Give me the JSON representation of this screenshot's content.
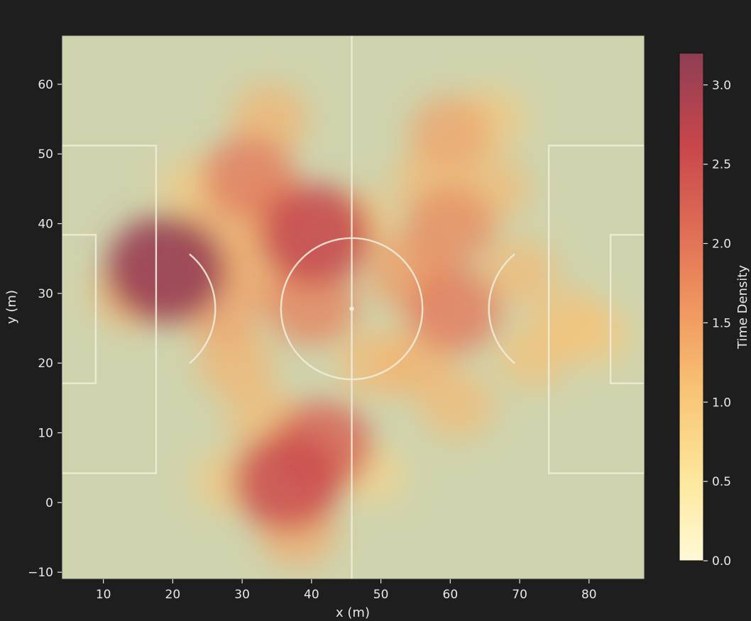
{
  "chart_data": {
    "type": "heatmap",
    "title": "",
    "xlabel": "x (m)",
    "ylabel": "y (m)",
    "xlim": [
      4,
      88
    ],
    "ylim": [
      -11,
      67
    ],
    "xticks": [
      10,
      20,
      30,
      40,
      50,
      60,
      70,
      80
    ],
    "yticks": [
      -10,
      0,
      10,
      20,
      30,
      40,
      50,
      60
    ],
    "colorbar": {
      "label": "Time Density",
      "range": [
        0.0,
        3.2
      ],
      "ticks": [
        0.0,
        0.5,
        1.0,
        1.5,
        2.0,
        2.5,
        3.0
      ],
      "tick_labels": [
        "0.0",
        "0.5",
        "1.0",
        "1.5",
        "2.0",
        "2.5",
        "3.0"
      ],
      "colormap": [
        "#fff9d6",
        "#fde79c",
        "#f8c274",
        "#f0965f",
        "#de6b55",
        "#c8464b",
        "#8e3e55"
      ]
    },
    "pitch": {
      "halfway_x": 45.8,
      "center": [
        45.8,
        27.8
      ],
      "center_circle_radius": 10.2,
      "left_penalty_box": {
        "x": [
          4,
          17.6
        ],
        "y": [
          4.2,
          51.2
        ]
      },
      "left_goal_area": {
        "x": [
          4,
          8.9
        ],
        "y": [
          17.1,
          38.4
        ]
      },
      "right_penalty_box": {
        "x": [
          74.2,
          88
        ],
        "y": [
          4.2,
          51.2
        ]
      },
      "right_goal_area": {
        "x": [
          83.1,
          88
        ],
        "y": [
          17.1,
          38.4
        ]
      },
      "line_color": "#f0ecd8"
    },
    "density_hotspots": [
      {
        "x": 19,
        "y": 33.5,
        "value": 3.1
      },
      {
        "x": 40.5,
        "y": 38.5,
        "value": 2.7
      },
      {
        "x": 36.5,
        "y": 3,
        "value": 2.6
      },
      {
        "x": 41.5,
        "y": 8,
        "value": 2.3
      },
      {
        "x": 31,
        "y": 46.5,
        "value": 2.0
      },
      {
        "x": 40,
        "y": 28.5,
        "value": 1.9
      },
      {
        "x": 60.5,
        "y": 27.5,
        "value": 2.0
      },
      {
        "x": 60,
        "y": 39.5,
        "value": 1.8
      },
      {
        "x": 60,
        "y": 53,
        "value": 1.5
      },
      {
        "x": 54,
        "y": 33,
        "value": 1.6
      },
      {
        "x": 27,
        "y": 28,
        "value": 1.5
      },
      {
        "x": 33,
        "y": 34,
        "value": 1.4
      },
      {
        "x": 26,
        "y": 38,
        "value": 1.3
      },
      {
        "x": 34,
        "y": 55,
        "value": 1.3
      },
      {
        "x": 35,
        "y": 42,
        "value": 1.3
      },
      {
        "x": 29,
        "y": 20,
        "value": 1.3
      },
      {
        "x": 33,
        "y": 12,
        "value": 1.2
      },
      {
        "x": 55,
        "y": 20,
        "value": 1.3
      },
      {
        "x": 61,
        "y": 14,
        "value": 1.2
      },
      {
        "x": 66,
        "y": 45,
        "value": 1.2
      },
      {
        "x": 70,
        "y": 33,
        "value": 1.2
      },
      {
        "x": 77,
        "y": 26,
        "value": 1.1
      },
      {
        "x": 81,
        "y": 24,
        "value": 1.0
      },
      {
        "x": 72,
        "y": 21,
        "value": 1.1
      },
      {
        "x": 49,
        "y": 20,
        "value": 1.2
      },
      {
        "x": 47,
        "y": 40,
        "value": 1.1
      },
      {
        "x": 14,
        "y": 30,
        "value": 1.3
      },
      {
        "x": 23,
        "y": 45,
        "value": 1.0
      },
      {
        "x": 49,
        "y": 4,
        "value": 0.8
      },
      {
        "x": 28,
        "y": 3,
        "value": 1.0
      },
      {
        "x": 38,
        "y": -4,
        "value": 1.4
      },
      {
        "x": 66,
        "y": 55,
        "value": 1.0
      },
      {
        "x": 57,
        "y": 46,
        "value": 1.2
      }
    ]
  }
}
